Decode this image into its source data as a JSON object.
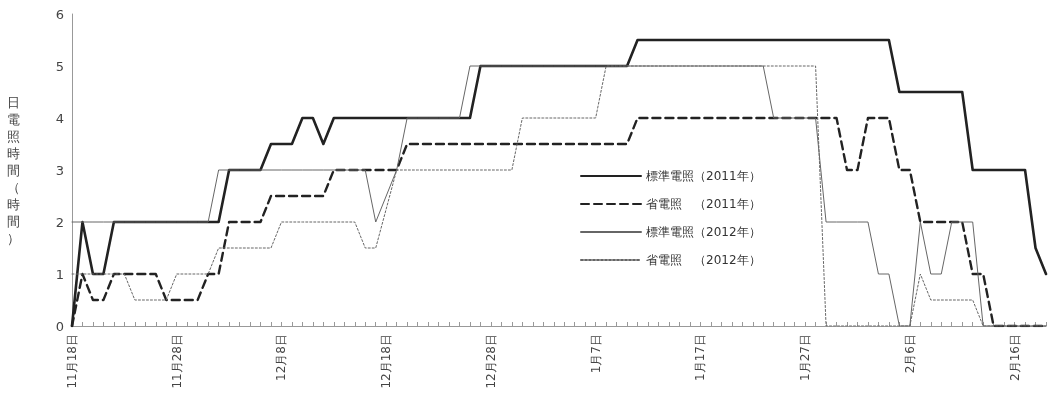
{
  "chart_data": {
    "type": "line",
    "ylabel": "日電照時間（時間）",
    "categories": [
      "11月18日",
      null,
      null,
      null,
      null,
      null,
      null,
      null,
      null,
      null,
      "11月28日",
      null,
      null,
      null,
      null,
      null,
      null,
      null,
      null,
      null,
      "12月8日",
      null,
      null,
      null,
      null,
      null,
      null,
      null,
      null,
      null,
      "12月18日",
      null,
      null,
      null,
      null,
      null,
      null,
      null,
      null,
      null,
      "12月28日",
      null,
      null,
      null,
      null,
      null,
      null,
      null,
      null,
      null,
      "1月7日",
      null,
      null,
      null,
      null,
      null,
      null,
      null,
      null,
      null,
      "1月17日",
      null,
      null,
      null,
      null,
      null,
      null,
      null,
      null,
      null,
      "1月27日",
      null,
      null,
      null,
      null,
      null,
      null,
      null,
      null,
      null,
      "2月6日",
      null,
      null,
      null,
      null,
      null,
      null,
      null,
      null,
      null,
      "2月16日",
      null,
      null,
      null
    ],
    "series": [
      {
        "name": "標準電照（2011年）",
        "color": "#222222",
        "line_style": "solid",
        "values": [
          0,
          2,
          1,
          1,
          2,
          2,
          2,
          2,
          2,
          2,
          2,
          2,
          2,
          2,
          2,
          3,
          3,
          3,
          3,
          3.5,
          3.5,
          3.5,
          4,
          4,
          3.5,
          4,
          4,
          4,
          4,
          4,
          4,
          4,
          4,
          4,
          4,
          4,
          4,
          4,
          4,
          5,
          5,
          5,
          5,
          5,
          5,
          5,
          5,
          5,
          5,
          5,
          5,
          5,
          5,
          5,
          5.5,
          5.5,
          5.5,
          5.5,
          5.5,
          5.5,
          5.5,
          5.5,
          5.5,
          5.5,
          5.5,
          5.5,
          5.5,
          5.5,
          5.5,
          5.5,
          5.5,
          5.5,
          5.5,
          5.5,
          5.5,
          5.5,
          5.5,
          5.5,
          5.5,
          4.5,
          4.5,
          4.5,
          4.5,
          4.5,
          4.5,
          4.5,
          3,
          3,
          3,
          3,
          3,
          3,
          1.5,
          1
        ]
      },
      {
        "name": "省電照　（2011年）",
        "color": "#222222",
        "line_style": "dashed",
        "values": [
          0,
          1,
          0.5,
          0.5,
          1,
          1,
          1,
          1,
          1,
          0.5,
          0.5,
          0.5,
          0.5,
          1,
          1,
          2,
          2,
          2,
          2,
          2.5,
          2.5,
          2.5,
          2.5,
          2.5,
          2.5,
          3,
          3,
          3,
          3,
          3,
          3,
          3,
          3.5,
          3.5,
          3.5,
          3.5,
          3.5,
          3.5,
          3.5,
          3.5,
          3.5,
          3.5,
          3.5,
          3.5,
          3.5,
          3.5,
          3.5,
          3.5,
          3.5,
          3.5,
          3.5,
          3.5,
          3.5,
          3.5,
          4,
          4,
          4,
          4,
          4,
          4,
          4,
          4,
          4,
          4,
          4,
          4,
          4,
          4,
          4,
          4,
          4,
          4,
          4,
          4,
          3,
          3,
          4,
          4,
          4,
          3,
          3,
          2,
          2,
          2,
          2,
          2,
          1,
          1,
          0,
          0,
          0,
          0,
          0,
          0
        ]
      },
      {
        "name": "標準電照（2012年）",
        "color": "#666666",
        "line_style": "solid",
        "values": [
          2,
          2,
          2,
          2,
          2,
          2,
          2,
          2,
          2,
          2,
          2,
          2,
          2,
          2,
          3,
          3,
          3,
          3,
          3,
          3,
          3,
          3,
          3,
          3,
          3,
          3,
          3,
          3,
          3,
          2,
          2.5,
          3,
          4,
          4,
          4,
          4,
          4,
          4,
          5,
          5,
          5,
          5,
          5,
          5,
          5,
          5,
          5,
          5,
          5,
          5,
          5,
          5,
          5,
          5,
          5,
          5,
          5,
          5,
          5,
          5,
          5,
          5,
          5,
          5,
          5,
          5,
          5,
          4,
          4,
          4,
          4,
          4,
          2,
          2,
          2,
          2,
          2,
          1,
          1,
          0,
          0,
          2,
          1,
          1,
          2,
          2,
          2,
          0,
          0,
          0,
          0,
          0,
          0,
          0
        ]
      },
      {
        "name": "省電照　（2012年）",
        "color": "#666666",
        "line_style": "dotted",
        "values": [
          1,
          1,
          1,
          1,
          1,
          1,
          0.5,
          0.5,
          0.5,
          0.5,
          1,
          1,
          1,
          1,
          1.5,
          1.5,
          1.5,
          1.5,
          1.5,
          1.5,
          2,
          2,
          2,
          2,
          2,
          2,
          2,
          2,
          1.5,
          1.5,
          2.25,
          3,
          3,
          3,
          3,
          3,
          3,
          3,
          3,
          3,
          3,
          3,
          3,
          4,
          4,
          4,
          4,
          4,
          4,
          4,
          4,
          5,
          5,
          5,
          5,
          5,
          5,
          5,
          5,
          5,
          5,
          5,
          5,
          5,
          5,
          5,
          5,
          5,
          5,
          5,
          5,
          5,
          0,
          0,
          0,
          0,
          0,
          0,
          0,
          0,
          0,
          1,
          0.5,
          0.5,
          0.5,
          0.5,
          0.5,
          0,
          0,
          0,
          0,
          0,
          0,
          0
        ]
      }
    ],
    "ylim": [
      0,
      6
    ],
    "yticks": [
      0,
      1,
      2,
      3,
      4,
      5,
      6
    ],
    "grid": false,
    "legend": "center",
    "marker": "none"
  }
}
